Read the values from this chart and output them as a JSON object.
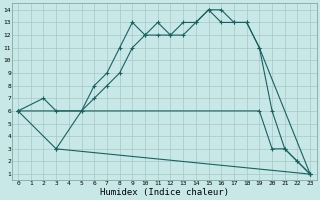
{
  "title": "",
  "xlabel": "Humidex (Indice chaleur)",
  "bg_color": "#c8e8e8",
  "grid_color": "#a8c8c8",
  "line_color": "#1a6060",
  "xlim": [
    -0.5,
    23.5
  ],
  "ylim": [
    0.5,
    14.5
  ],
  "xticks": [
    0,
    1,
    2,
    3,
    4,
    5,
    6,
    7,
    8,
    9,
    10,
    11,
    12,
    13,
    14,
    15,
    16,
    17,
    18,
    19,
    20,
    21,
    22,
    23
  ],
  "yticks": [
    1,
    2,
    3,
    4,
    5,
    6,
    7,
    8,
    9,
    10,
    11,
    12,
    13,
    14
  ],
  "line1_x": [
    0,
    2,
    3,
    5,
    6,
    7,
    8,
    9,
    10,
    11,
    12,
    13,
    14,
    15,
    16,
    17,
    18,
    19,
    23
  ],
  "line1_y": [
    6,
    7,
    6,
    6,
    8,
    9,
    11,
    13,
    12,
    13,
    12,
    13,
    13,
    14,
    14,
    13,
    13,
    11,
    1
  ],
  "line2_x": [
    0,
    3,
    5,
    6,
    7,
    8,
    9,
    10,
    11,
    12,
    13,
    14,
    15,
    16,
    17,
    18,
    19,
    20,
    21,
    22,
    23
  ],
  "line2_y": [
    6,
    3,
    6,
    7,
    8,
    9,
    11,
    12,
    12,
    12,
    12,
    13,
    14,
    13,
    13,
    13,
    11,
    6,
    3,
    2,
    1
  ],
  "line3_x": [
    3,
    23
  ],
  "line3_y": [
    3,
    1
  ],
  "line4_x": [
    0,
    19,
    20,
    21,
    22,
    23
  ],
  "line4_y": [
    6,
    6,
    3,
    3,
    2,
    1
  ]
}
